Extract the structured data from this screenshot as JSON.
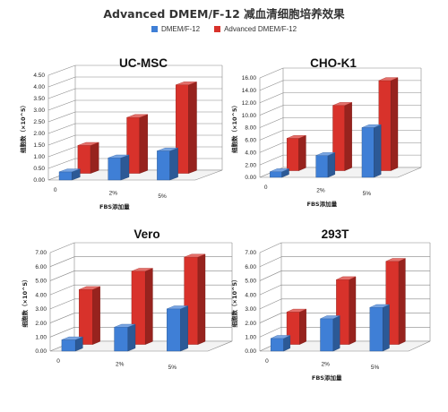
{
  "title": "Advanced DMEM/F-12 减血清细胞培养效果",
  "legend": [
    {
      "name": "DMEM/F-12",
      "color": "#3f7fd6"
    },
    {
      "name": "Advanced DMEM/F-12",
      "color": "#d8322b"
    }
  ],
  "chart_data": [
    {
      "type": "bar",
      "title": "UC-MSC",
      "categories": [
        "0",
        "2%",
        "5%"
      ],
      "xlabel": "FBS添加量",
      "ylabel": "细胞数（×10^5）",
      "ylim": [
        0,
        4.5
      ],
      "yticks": [
        "0.00",
        "0.50",
        "1.00",
        "1.50",
        "2.00",
        "2.50",
        "3.00",
        "3.50",
        "4.00",
        "4.50"
      ],
      "series": [
        {
          "name": "DMEM/F-12",
          "values": [
            0.35,
            0.95,
            1.25
          ]
        },
        {
          "name": "Advanced DMEM/F-12",
          "values": [
            1.2,
            2.4,
            3.8
          ]
        }
      ]
    },
    {
      "type": "bar",
      "title": "CHO-K1",
      "categories": [
        "0",
        "2%",
        "5%"
      ],
      "xlabel": "FBS添加量",
      "ylabel": "细胞数（×10^5）",
      "ylim": [
        0,
        16
      ],
      "yticks": [
        "0.00",
        "2.00",
        "4.00",
        "6.00",
        "8.00",
        "10.00",
        "12.00",
        "14.00",
        "16.00"
      ],
      "series": [
        {
          "name": "DMEM/F-12",
          "values": [
            0.9,
            3.5,
            8.0
          ]
        },
        {
          "name": "Advanced DMEM/F-12",
          "values": [
            5.2,
            10.5,
            14.5
          ]
        }
      ]
    },
    {
      "type": "bar",
      "title": "Vero",
      "categories": [
        "0",
        "2%",
        "5%"
      ],
      "xlabel": "",
      "ylabel": "细胞数（×10^5）",
      "ylim": [
        0,
        7
      ],
      "yticks": [
        "0.00",
        "1.00",
        "2.00",
        "3.00",
        "4.00",
        "5.00",
        "6.00",
        "7.00"
      ],
      "series": [
        {
          "name": "DMEM/F-12",
          "values": [
            0.8,
            1.7,
            3.0
          ]
        },
        {
          "name": "Advanced DMEM/F-12",
          "values": [
            3.9,
            5.2,
            6.2
          ]
        }
      ]
    },
    {
      "type": "bar",
      "title": "293T",
      "categories": [
        "0",
        "2%",
        "5%"
      ],
      "xlabel": "FBS添加量",
      "ylabel": "细胞数（×10^5）",
      "ylim": [
        0,
        7
      ],
      "yticks": [
        "0.00",
        "1.00",
        "2.00",
        "3.00",
        "4.00",
        "5.00",
        "6.00",
        "7.00"
      ],
      "series": [
        {
          "name": "DMEM/F-12",
          "values": [
            0.9,
            2.3,
            3.1
          ]
        },
        {
          "name": "Advanced DMEM/F-12",
          "values": [
            2.3,
            4.6,
            5.9
          ]
        }
      ]
    }
  ]
}
